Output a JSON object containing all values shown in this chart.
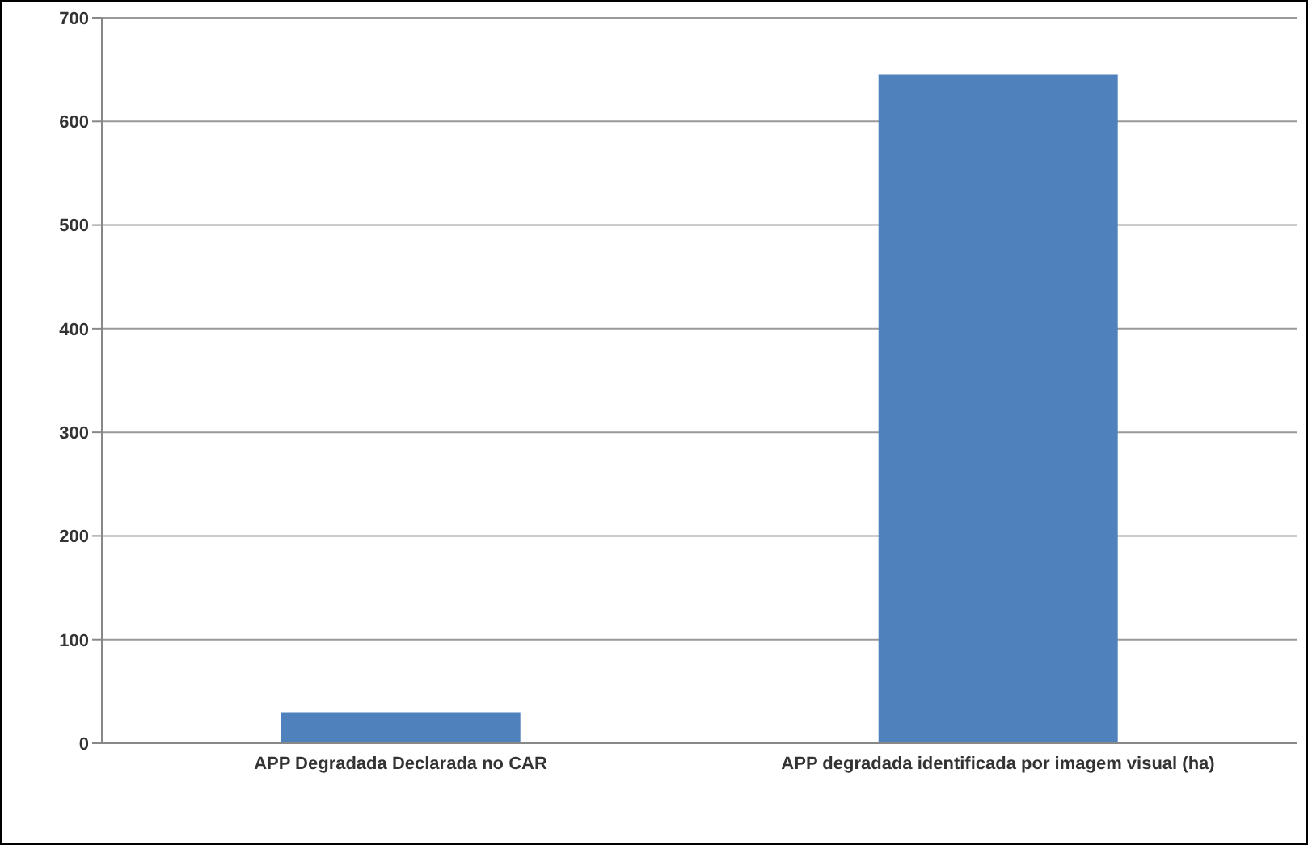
{
  "chart_data": {
    "type": "bar",
    "categories": [
      "APP Degradada Declarada no CAR",
      "APP degradada identificada por imagem visual (ha)"
    ],
    "values": [
      30,
      645
    ],
    "color": "#4f81bd",
    "ylim": [
      0,
      700
    ],
    "yticks": [
      0,
      100,
      200,
      300,
      400,
      500,
      600,
      700
    ],
    "grid": "y"
  }
}
